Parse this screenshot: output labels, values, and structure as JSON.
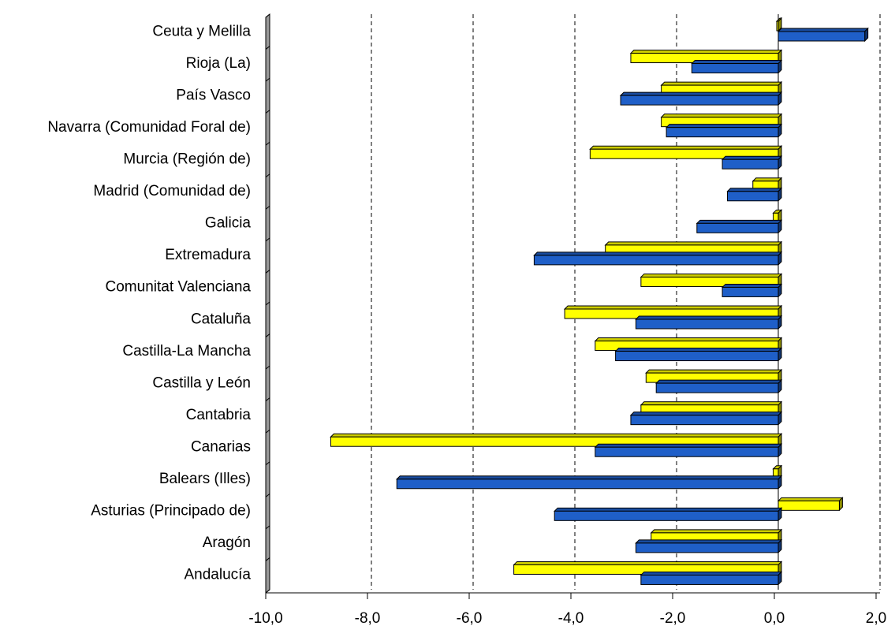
{
  "chart_data": {
    "type": "bar",
    "orientation": "horizontal",
    "three_d": true,
    "categories": [
      "Andalucía",
      "Aragón",
      "Asturias (Principado de)",
      "Balears (Illes)",
      "Canarias",
      "Cantabria",
      "Castilla y León",
      "Castilla-La Mancha",
      "Cataluña",
      "Comunitat Valenciana",
      "Extremadura",
      "Galicia",
      "Madrid (Comunidad de)",
      "Murcia (Región de)",
      "Navarra (Comunidad Foral de)",
      "País Vasco",
      "Rioja (La)",
      "Ceuta y Melilla"
    ],
    "series": [
      {
        "color": "#FFFF00",
        "values": [
          -5.2,
          -2.5,
          1.2,
          -0.1,
          -8.8,
          -2.7,
          -2.6,
          -3.6,
          -4.2,
          -2.7,
          -3.4,
          -0.1,
          -0.5,
          -3.7,
          -2.3,
          -2.3,
          -2.9,
          0.0
        ]
      },
      {
        "color": "#1F5FC8",
        "values": [
          -2.7,
          -2.8,
          -4.4,
          -7.5,
          -3.6,
          -2.9,
          -2.4,
          -3.2,
          -2.8,
          -1.1,
          -4.8,
          -1.6,
          -1.0,
          -1.1,
          -2.2,
          -3.1,
          -1.7,
          1.7
        ]
      }
    ],
    "xlim": [
      -10,
      2
    ],
    "ticks": [
      "-10,0",
      "-8,0",
      "-6,0",
      "-4,0",
      "-2,0",
      "0,0",
      "2,0"
    ],
    "grid": "vertical-dashed",
    "xlabel": "",
    "ylabel": "",
    "title": ""
  }
}
